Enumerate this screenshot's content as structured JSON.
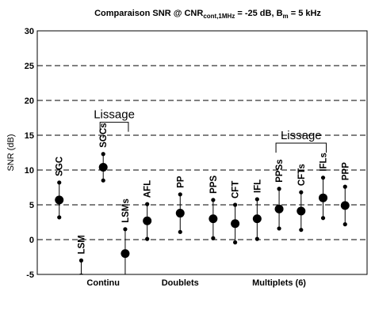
{
  "chart_data": {
    "type": "scatter",
    "title": {
      "main": "Comparaison SNR @ CNR",
      "sub1": "cont,1MHz",
      "mid": " = -25 dB, B",
      "sub2": "m",
      "tail": " = 5 kHz"
    },
    "ylabel": "SNR (dB)",
    "ylim": [
      -5,
      30
    ],
    "yticks": [
      -5,
      0,
      5,
      10,
      15,
      20,
      25,
      30
    ],
    "grid": "dashed horizontal at each y tick",
    "groups": [
      {
        "label": "Continu",
        "x": 3
      },
      {
        "label": "Doublets",
        "x": 6.5
      },
      {
        "label": "Multiplets (6)",
        "x": 11
      }
    ],
    "points": [
      {
        "label": "SGC",
        "x": 1,
        "mean": 5.7,
        "low": 3.2,
        "high": 8.2
      },
      {
        "label": "LSM",
        "x": 2,
        "mean": -5.5,
        "low": -8.0,
        "high": -3.0
      },
      {
        "label": "SGCs",
        "x": 3,
        "mean": 10.4,
        "low": 8.5,
        "high": 12.3
      },
      {
        "label": "LSMs",
        "x": 4,
        "mean": -2.0,
        "low": -5.5,
        "high": 1.5
      },
      {
        "label": "AFL",
        "x": 5,
        "mean": 2.7,
        "low": 0.1,
        "high": 5.1
      },
      {
        "label": "PP",
        "x": 6.5,
        "mean": 3.8,
        "low": 1.1,
        "high": 6.5
      },
      {
        "label": "PPS",
        "x": 8,
        "mean": 3.0,
        "low": 0.2,
        "high": 5.7
      },
      {
        "label": "CFT",
        "x": 9,
        "mean": 2.3,
        "low": -0.4,
        "high": 5.0
      },
      {
        "label": "IFL",
        "x": 10,
        "mean": 3.0,
        "low": 0.1,
        "high": 5.8
      },
      {
        "label": "PPSs",
        "x": 11,
        "mean": 4.4,
        "low": 1.6,
        "high": 7.3
      },
      {
        "label": "CFTs",
        "x": 12,
        "mean": 4.1,
        "low": 1.4,
        "high": 6.8
      },
      {
        "label": "IFLs",
        "x": 13,
        "mean": 6.0,
        "low": 3.1,
        "high": 8.9
      },
      {
        "label": "PPP",
        "x": 14,
        "mean": 4.9,
        "low": 2.2,
        "high": 7.6
      }
    ],
    "annotations": [
      {
        "text": "Lissage",
        "span": [
          3,
          4
        ],
        "y": 18
      },
      {
        "text": "Lissage",
        "span": [
          11,
          13
        ],
        "y": 15
      }
    ]
  }
}
